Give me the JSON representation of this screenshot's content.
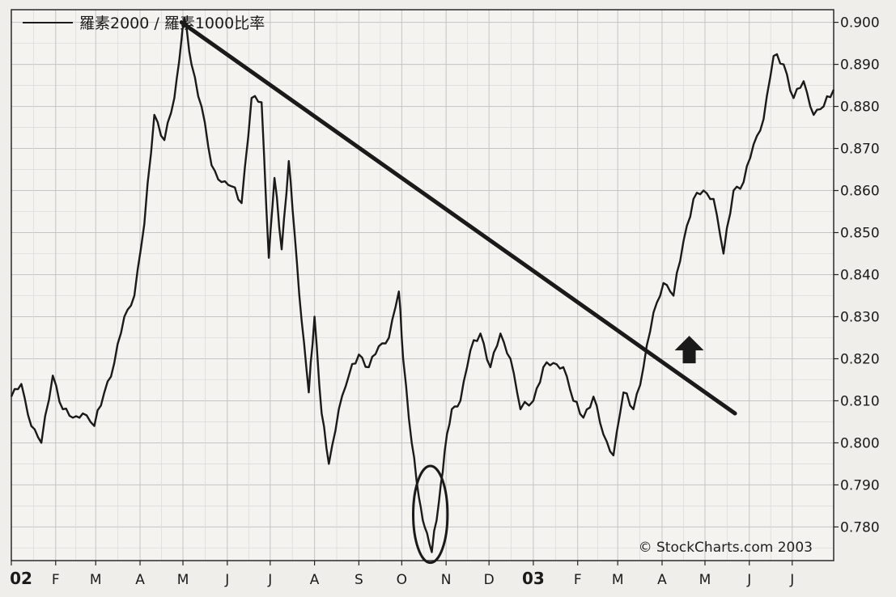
{
  "chart_data": {
    "type": "line",
    "legend": "羅素2000 / 羅素1000比率",
    "credit": "© StockCharts.com 2003",
    "ylim": [
      0.772,
      0.903
    ],
    "y_ticks": [
      "0.900",
      "0.890",
      "0.880",
      "0.870",
      "0.860",
      "0.850",
      "0.840",
      "0.830",
      "0.820",
      "0.810",
      "0.800",
      "0.790",
      "0.780"
    ],
    "y_tick_values": [
      0.9,
      0.89,
      0.88,
      0.87,
      0.86,
      0.85,
      0.84,
      0.83,
      0.82,
      0.81,
      0.8,
      0.79,
      0.78
    ],
    "x_ticks": [
      "02",
      "F",
      "M",
      "A",
      "M",
      "J",
      "J",
      "A",
      "S",
      "O",
      "N",
      "D",
      "03",
      "F",
      "M",
      "A",
      "M",
      "J",
      "J"
    ],
    "x_tick_bold": [
      true,
      false,
      false,
      false,
      false,
      false,
      false,
      false,
      false,
      false,
      false,
      false,
      true,
      false,
      false,
      false,
      false,
      false,
      false
    ],
    "x_range": [
      "2002-01-02",
      "2003-07-31"
    ],
    "series": [
      {
        "dates": [
          "2002-01-02",
          "2002-01-09",
          "2002-01-16",
          "2002-01-23",
          "2002-01-31",
          "2002-02-07",
          "2002-02-14",
          "2002-02-21",
          "2002-03-01",
          "2002-03-08",
          "2002-03-15",
          "2002-03-22",
          "2002-03-29",
          "2002-04-05",
          "2002-04-12",
          "2002-04-19",
          "2002-04-26",
          "2002-05-01",
          "2002-05-03",
          "2002-05-08",
          "2002-05-15",
          "2002-05-22",
          "2002-05-29",
          "2002-06-05",
          "2002-06-12",
          "2002-06-19",
          "2002-06-26",
          "2002-07-01",
          "2002-07-05",
          "2002-07-10",
          "2002-07-15",
          "2002-07-19",
          "2002-07-24",
          "2002-07-29",
          "2002-08-02",
          "2002-08-07",
          "2002-08-12",
          "2002-08-19",
          "2002-08-26",
          "2002-09-02",
          "2002-09-09",
          "2002-09-16",
          "2002-09-23",
          "2002-09-30",
          "2002-10-03",
          "2002-10-09",
          "2002-10-14",
          "2002-10-18",
          "2002-10-23",
          "2002-10-28",
          "2002-11-01",
          "2002-11-06",
          "2002-11-12",
          "2002-11-19",
          "2002-11-26",
          "2002-12-03",
          "2002-12-10",
          "2002-12-17",
          "2002-12-24",
          "2003-01-02",
          "2003-01-09",
          "2003-01-16",
          "2003-01-23",
          "2003-01-30",
          "2003-02-06",
          "2003-02-13",
          "2003-02-20",
          "2003-02-27",
          "2003-03-06",
          "2003-03-13",
          "2003-03-20",
          "2003-03-27",
          "2003-04-03",
          "2003-04-10",
          "2003-04-17",
          "2003-04-24",
          "2003-05-01",
          "2003-05-08",
          "2003-05-15",
          "2003-05-22",
          "2003-05-29",
          "2003-06-05",
          "2003-06-12",
          "2003-06-19",
          "2003-06-26",
          "2003-07-03",
          "2003-07-10",
          "2003-07-17",
          "2003-07-24",
          "2003-07-31"
        ],
        "values": [
          0.811,
          0.814,
          0.804,
          0.8,
          0.816,
          0.808,
          0.806,
          0.807,
          0.804,
          0.812,
          0.819,
          0.83,
          0.835,
          0.852,
          0.878,
          0.872,
          0.882,
          0.896,
          0.901,
          0.89,
          0.88,
          0.866,
          0.862,
          0.861,
          0.857,
          0.882,
          0.881,
          0.844,
          0.863,
          0.846,
          0.867,
          0.85,
          0.829,
          0.812,
          0.83,
          0.807,
          0.795,
          0.808,
          0.816,
          0.821,
          0.818,
          0.823,
          0.825,
          0.836,
          0.82,
          0.8,
          0.787,
          0.78,
          0.774,
          0.786,
          0.798,
          0.808,
          0.81,
          0.822,
          0.826,
          0.818,
          0.826,
          0.82,
          0.808,
          0.81,
          0.818,
          0.819,
          0.818,
          0.81,
          0.806,
          0.811,
          0.802,
          0.797,
          0.812,
          0.808,
          0.818,
          0.831,
          0.838,
          0.835,
          0.848,
          0.858,
          0.86,
          0.858,
          0.845,
          0.86,
          0.862,
          0.871,
          0.877,
          0.892,
          0.89,
          0.882,
          0.886,
          0.878,
          0.88,
          0.884
        ]
      }
    ],
    "annotations": {
      "trendline": {
        "from": [
          "2002-05-01",
          0.9
        ],
        "to": [
          "2003-05-23",
          0.807
        ]
      },
      "circle": {
        "center": [
          "2002-10-22",
          0.783
        ],
        "x_radius_days": 12,
        "y_radius": 0.0115
      },
      "arrow": {
        "at": [
          "2003-04-21",
          0.822
        ],
        "direction": "up"
      }
    }
  }
}
